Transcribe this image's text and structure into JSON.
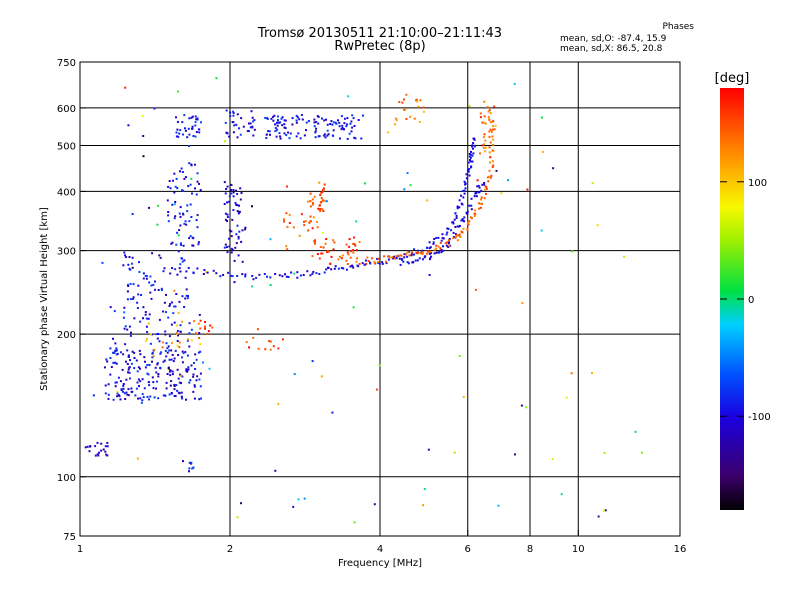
{
  "header": {
    "title_line1": "Tromsø 20130511 21:10:00–21:11:43",
    "title_line2": "RwPretec (8p)",
    "phase_title": "Phases",
    "phase_o": "mean, sd,O: -87.4, 15.9",
    "phase_x": "mean, sd,X: 86.5, 20.8"
  },
  "colorbar": {
    "unit": "[deg]",
    "ticks": [
      "100",
      "0",
      "-100"
    ],
    "tick_values": [
      100,
      0,
      -100
    ],
    "range": [
      -180,
      180
    ],
    "palette": "rainbow (black → violet → blue → cyan → green → yellow → orange → red)"
  },
  "chart_data": {
    "type": "scatter",
    "title": "Tromsø 20130511 21:10:00–21:11:43",
    "subtitle": "RwPretec (8p)",
    "xlabel": "Frequency [MHz]",
    "ylabel": "Stationary phase Virtual Height [km]",
    "x_scale": "log",
    "y_scale": "log",
    "xlim": [
      1,
      16
    ],
    "ylim": [
      75,
      750
    ],
    "x_ticks": [
      1,
      2,
      4,
      6,
      8,
      10,
      16
    ],
    "y_ticks": [
      75,
      100,
      200,
      300,
      400,
      500,
      600,
      750
    ],
    "x_gridlines": [
      2,
      4,
      6,
      8,
      10
    ],
    "y_gridlines": [
      100,
      200,
      300,
      400,
      500,
      600
    ],
    "grid": true,
    "color_by": "phase [deg]",
    "clusters": [
      {
        "x": [
          1.02,
          1.15
        ],
        "y": [
          110,
          118
        ],
        "n": 20,
        "phase": -110
      },
      {
        "x": [
          1.12,
          1.75
        ],
        "y": [
          145,
          185
        ],
        "n": 200,
        "phase": -100
      },
      {
        "x": [
          1.15,
          1.75
        ],
        "y": [
          180,
          230
        ],
        "n": 70,
        "phase": -95
      },
      {
        "x": [
          1.22,
          1.65
        ],
        "y": [
          230,
          300
        ],
        "n": 70,
        "phase": -95
      },
      {
        "x": [
          1.5,
          1.75
        ],
        "y": [
          295,
          460
        ],
        "n": 70,
        "phase": -100
      },
      {
        "x": [
          1.35,
          1.75
        ],
        "y": [
          185,
          215
        ],
        "n": 20,
        "phase": 120
      },
      {
        "x": [
          1.55,
          1.75
        ],
        "y": [
          520,
          580
        ],
        "n": 35,
        "phase": -90
      },
      {
        "x": [
          1.95,
          2.25
        ],
        "y": [
          520,
          610
        ],
        "n": 35,
        "phase": -100
      },
      {
        "x": [
          2.35,
          3.7
        ],
        "y": [
          515,
          580
        ],
        "n": 120,
        "phase": -95
      },
      {
        "x": [
          1.95,
          2.15
        ],
        "y": [
          280,
          420
        ],
        "n": 60,
        "phase": -110
      },
      {
        "x": [
          2.55,
          3.0
        ],
        "y": [
          300,
          360
        ],
        "n": 25,
        "phase": 150
      },
      {
        "x": [
          2.85,
          3.1
        ],
        "y": [
          360,
          420
        ],
        "n": 30,
        "phase": 145
      },
      {
        "x": [
          2.9,
          3.8
        ],
        "y": [
          280,
          320
        ],
        "n": 45,
        "phase": 155
      },
      {
        "x": [
          1.7,
          1.85
        ],
        "y": [
          195,
          215
        ],
        "n": 10,
        "phase": 165
      },
      {
        "x": [
          2.1,
          2.6
        ],
        "y": [
          185,
          205
        ],
        "n": 12,
        "phase": 160
      },
      {
        "x": [
          1.6,
          1.7
        ],
        "y": [
          102,
          108
        ],
        "n": 8,
        "phase": -90
      },
      {
        "x": [
          4.3,
          4.9
        ],
        "y": [
          560,
          640
        ],
        "n": 18,
        "phase": 130
      },
      {
        "x": [
          6.3,
          6.8
        ],
        "y": [
          480,
          620
        ],
        "n": 22,
        "phase": 140
      },
      {
        "x": [
          1.05,
          13.5
        ],
        "y": [
          78,
          700
        ],
        "n": 110,
        "phase": 0
      }
    ],
    "traces": [
      {
        "name": "",
        "phase": -100,
        "points": [
          [
            1.6,
            275
          ],
          [
            2.0,
            265
          ],
          [
            2.5,
            264
          ],
          [
            3.0,
            270
          ],
          [
            3.5,
            278
          ],
          [
            4.0,
            285
          ],
          [
            4.5,
            292
          ],
          [
            5.0,
            305
          ],
          [
            5.5,
            330
          ],
          [
            5.8,
            375
          ],
          [
            6.0,
            430
          ],
          [
            6.1,
            480
          ],
          [
            6.2,
            520
          ]
        ]
      },
      {
        "name": "",
        "phase": -105,
        "points": [
          [
            4.4,
            283
          ],
          [
            5.0,
            290
          ],
          [
            5.4,
            303
          ],
          [
            5.8,
            340
          ],
          [
            6.2,
            390
          ],
          [
            6.45,
            420
          ]
        ]
      },
      {
        "name": "",
        "phase": 140,
        "points": [
          [
            3.8,
            285
          ],
          [
            4.4,
            292
          ],
          [
            5.0,
            300
          ],
          [
            5.6,
            315
          ],
          [
            6.0,
            340
          ],
          [
            6.4,
            380
          ],
          [
            6.7,
            440
          ],
          [
            6.7,
            520
          ],
          [
            6.6,
            600
          ]
        ]
      }
    ]
  }
}
